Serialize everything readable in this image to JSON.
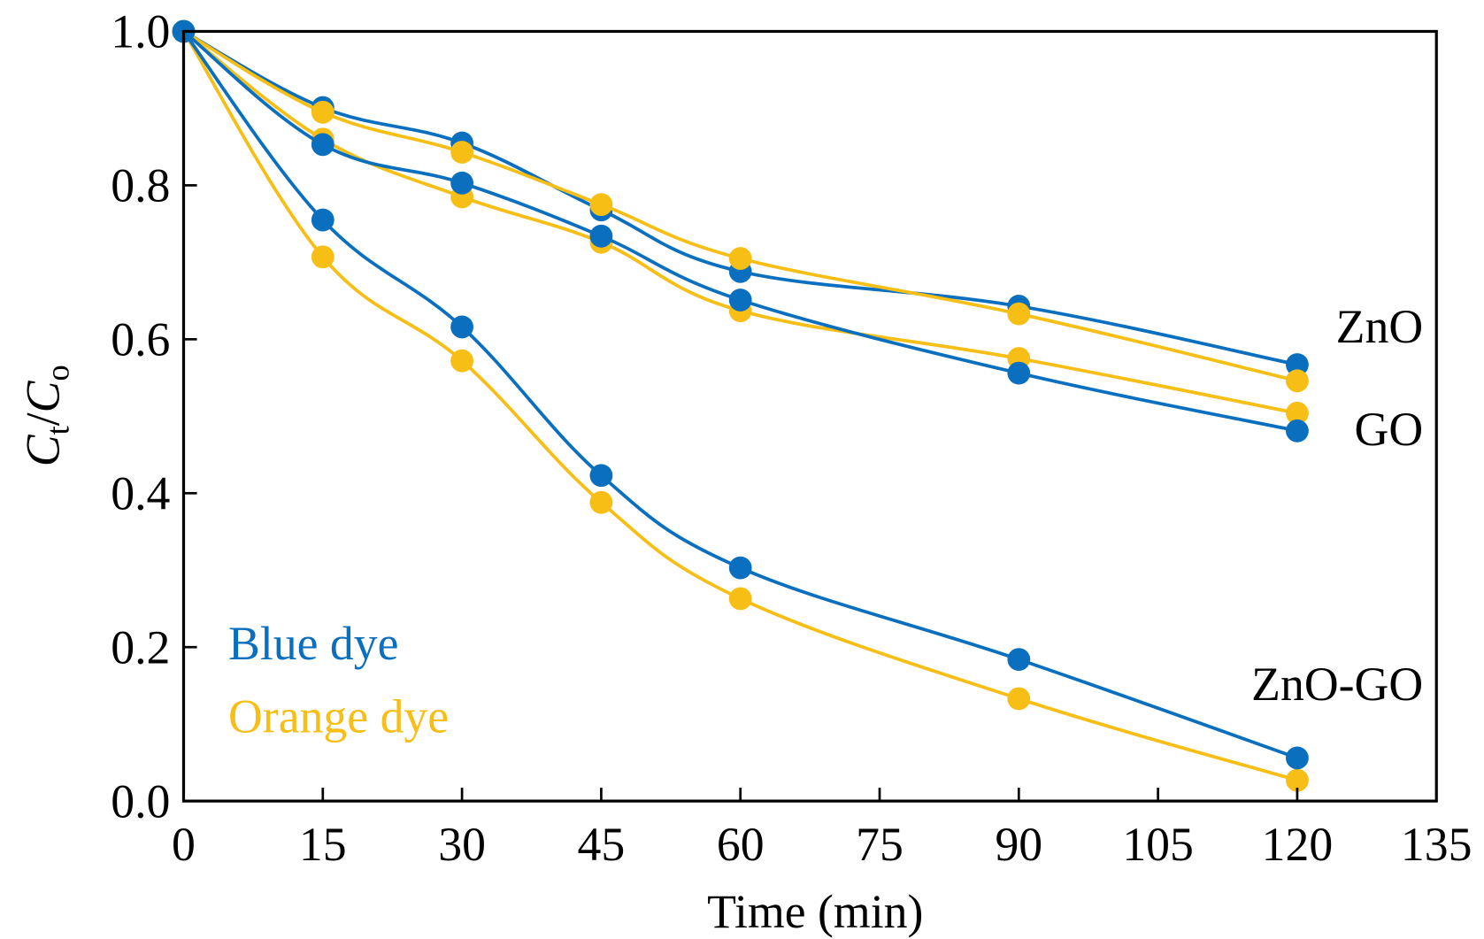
{
  "chart_data": {
    "type": "line",
    "xlabel": "Time (min)",
    "ylabel": {
      "main": "C",
      "sub_t": "t",
      "slash": "/",
      "main2": "C",
      "sub_o": "o"
    },
    "xlim": [
      0,
      135
    ],
    "ylim": [
      0,
      1.0
    ],
    "xticks": [
      "0",
      "15",
      "30",
      "45",
      "60",
      "75",
      "90",
      "105",
      "120",
      "135"
    ],
    "yticks": [
      "0.0",
      "0.2",
      "0.4",
      "0.6",
      "0.8",
      "1.0"
    ],
    "grid": false,
    "x": [
      0,
      15,
      30,
      45,
      60,
      90,
      120
    ],
    "colors": {
      "blue": "#0b6fbf",
      "orange": "#f7be16"
    },
    "legend": {
      "blue": "Blue dye",
      "orange": "Orange dye",
      "placement": "bottom-left"
    },
    "series": [
      {
        "material": "ZnO",
        "dye": "blue",
        "values": [
          1.0,
          0.901,
          0.855,
          0.768,
          0.688,
          0.643,
          0.567
        ]
      },
      {
        "material": "ZnO",
        "dye": "orange",
        "values": [
          1.0,
          0.895,
          0.843,
          0.775,
          0.705,
          0.633,
          0.546
        ]
      },
      {
        "material": "GO",
        "dye": "orange",
        "values": [
          1.0,
          0.86,
          0.785,
          0.726,
          0.637,
          0.575,
          0.504
        ]
      },
      {
        "material": "GO",
        "dye": "blue",
        "values": [
          1.0,
          0.853,
          0.803,
          0.734,
          0.651,
          0.556,
          0.481
        ]
      },
      {
        "material": "ZnO-GO",
        "dye": "orange",
        "values": [
          1.0,
          0.707,
          0.572,
          0.388,
          0.263,
          0.133,
          0.027
        ]
      },
      {
        "material": "ZnO-GO",
        "dye": "blue",
        "values": [
          1.0,
          0.755,
          0.616,
          0.423,
          0.303,
          0.184,
          0.056
        ]
      }
    ],
    "annotations": [
      "ZnO",
      "GO",
      "ZnO-GO"
    ]
  }
}
